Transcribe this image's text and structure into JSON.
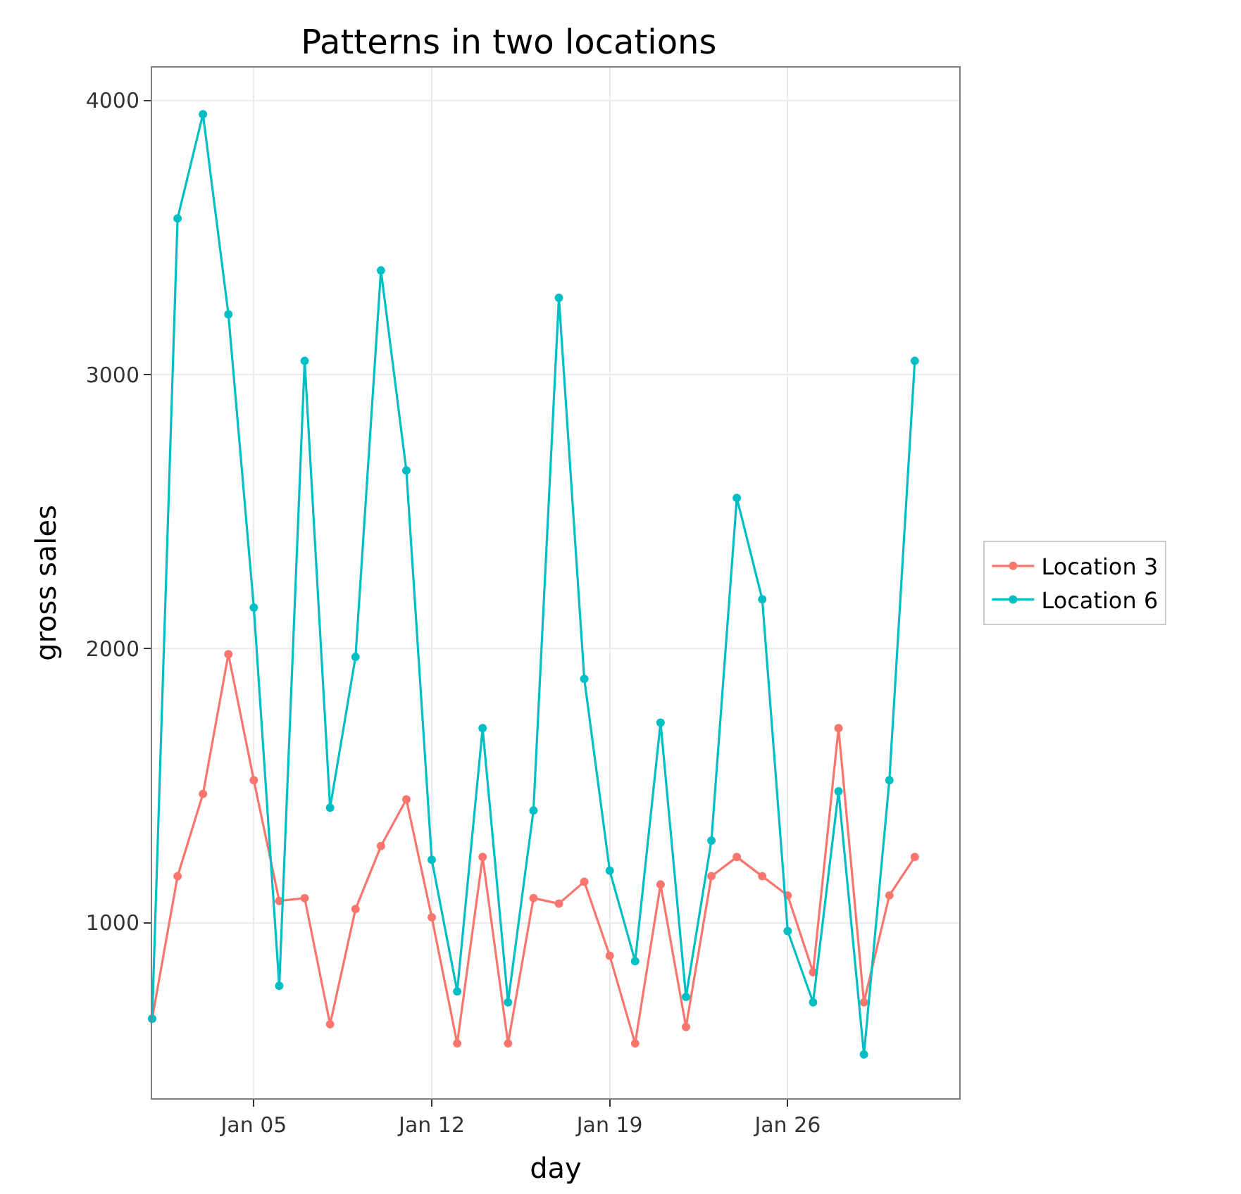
{
  "chart_data": {
    "type": "line",
    "title": "Patterns in two locations",
    "xlabel": "day",
    "ylabel": "gross sales",
    "x": [
      "--01-01",
      "--01-02",
      "--01-03",
      "--01-04",
      "--01-05",
      "--01-06",
      "--01-07",
      "--01-08",
      "--01-09",
      "--01-10",
      "--01-11",
      "--01-12",
      "--01-13",
      "--01-14",
      "--01-15",
      "--01-16",
      "--01-17",
      "--01-18",
      "--01-19",
      "--01-20",
      "--01-21",
      "--01-22",
      "--01-23",
      "--01-24",
      "--01-25",
      "--01-26",
      "--01-27",
      "--01-28",
      "--01-29",
      "--01-30",
      "--01-31"
    ],
    "series": [
      {
        "name": "Location 3",
        "color": "#f8766d",
        "values": [
          650,
          1170,
          1470,
          1980,
          1520,
          1080,
          1090,
          630,
          1050,
          1280,
          1450,
          1020,
          560,
          1240,
          560,
          1090,
          1070,
          1150,
          880,
          560,
          1140,
          620,
          1170,
          1240,
          1170,
          1100,
          820,
          1710,
          710,
          1100,
          1240
        ]
      },
      {
        "name": "Location 6",
        "color": "#00bfc4",
        "values": [
          650,
          3570,
          3950,
          3220,
          2150,
          770,
          3050,
          1420,
          1970,
          3380,
          2650,
          1230,
          750,
          1710,
          710,
          1410,
          3280,
          1890,
          1190,
          860,
          1730,
          730,
          1300,
          2550,
          2180,
          970,
          710,
          1480,
          520,
          1520,
          3050
        ]
      }
    ],
    "xlim": [
      "--01-01",
      "--02-01T18:00"
    ],
    "xticks": [
      {
        "value": "--01-05",
        "label": "Jan 05"
      },
      {
        "value": "--01-12",
        "label": "Jan 12"
      },
      {
        "value": "--01-19",
        "label": "Jan 19"
      },
      {
        "value": "--01-26",
        "label": "Jan 26"
      }
    ],
    "ylim": [
      360,
      4120
    ],
    "yticks": [
      1000,
      2000,
      3000,
      4000
    ],
    "grid": true,
    "legend": "right",
    "marker": "circle",
    "line_style": "solid"
  }
}
